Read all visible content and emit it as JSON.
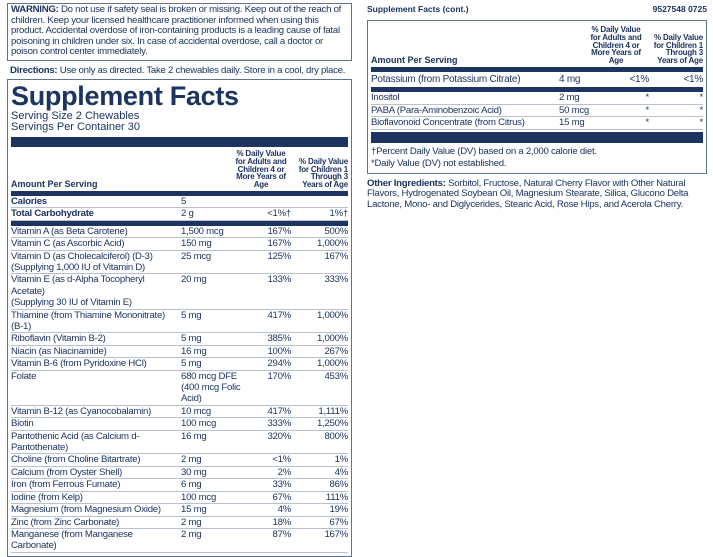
{
  "warning": {
    "label": "WARNING:",
    "text": " Do not use if safety seal is broken or missing. Keep out of the reach of children. Keep your licensed healthcare practitioner informed when using this product. Accidental overdose of iron-containing products is a leading cause of fatal poisoning in children under six. In case of accidental overdose, call a doctor or poison control center immediately."
  },
  "directions": {
    "label": "Directions:",
    "text": " Use only as directed. Take 2 chewables daily. Store in a cool, dry place."
  },
  "facts": {
    "title": "Supplement Facts",
    "serving_size": "Serving Size 2 Chewables",
    "servings": "Servings Per Container 30",
    "amount_header": "Amount Per Serving",
    "dv_adult_header": "% Daily Value for Adults and Children 4 or More Years of Age",
    "dv_child_header": "% Daily Value for Children 1 Through 3 Years of Age",
    "top_rows": [
      [
        "Calories",
        "5",
        "",
        ""
      ],
      [
        "Total Carbohydrate",
        "2 g",
        "<1%†",
        "1%†"
      ]
    ],
    "rows": [
      [
        "Vitamin A (as Beta Carotene)",
        "1,500 mcg",
        "167%",
        "500%"
      ],
      [
        "Vitamin C (as Ascorbic Acid)",
        "150 mg",
        "167%",
        "1,000%"
      ],
      [
        "Vitamin D (as Cholecalciferol) (D-3)\n (Supplying 1,000 IU of Vitamin D)",
        "25 mcg",
        "125%",
        "167%"
      ],
      [
        "Vitamin E (as d-Alpha Tocopheryl Acetate)\n (Supplying 30 IU of Vitamin E)",
        "20 mg",
        "133%",
        "333%"
      ],
      [
        "Thiamine (from Thiamine Mononitrate) (B-1)",
        "5 mg",
        "417%",
        "1,000%"
      ],
      [
        "Riboflavin (Vitamin B-2)",
        "5 mg",
        "385%",
        "1,000%"
      ],
      [
        "Niacin (as Niacinamide)",
        "16 mg",
        "100%",
        "267%"
      ],
      [
        "Vitamin B-6 (from Pyridoxine HCl)",
        "5 mg",
        "294%",
        "1,000%"
      ],
      [
        "Folate",
        "680 mcg DFE\n(400 mcg Folic Acid)",
        "170%",
        "453%"
      ],
      [
        "Vitamin B-12 (as Cyanocobalamin)",
        "10 mcg",
        "417%",
        "1,111%"
      ],
      [
        "Biotin",
        "100 mcg",
        "333%",
        "1,250%"
      ],
      [
        "Pantothenic Acid (as Calcium d-Pantothenate)",
        "16 mg",
        "320%",
        "800%"
      ],
      [
        "Choline (from Choline Bitartrate)",
        "2 mg",
        "<1%",
        "1%"
      ],
      [
        "Calcium (from Oyster Shell)",
        "30 mg",
        "2%",
        "4%"
      ],
      [
        "Iron (from Ferrous Fumate)",
        "6 mg",
        "33%",
        "86%"
      ],
      [
        "Iodine (from Kelp)",
        "100 mcg",
        "67%",
        "111%"
      ],
      [
        "Magnesium (from Magnesium Oxide)",
        "15 mg",
        "4%",
        "19%"
      ],
      [
        "Zinc (from Zinc Carbonate)",
        "2 mg",
        "18%",
        "67%"
      ],
      [
        "Manganese (from Manganese Carbonate)",
        "2 mg",
        "87%",
        "167%"
      ]
    ]
  },
  "cont": {
    "title": "Supplement Facts (cont.)",
    "code": "9527548  0725",
    "potassium": [
      "Potassium (from Potassium Citrate)",
      "4 mg",
      "<1%",
      "<1%"
    ],
    "rows": [
      [
        "Inositol",
        "2 mg",
        "*",
        "*"
      ],
      [
        "PABA (Para-Aminobenzoic Acid)",
        "50 mcg",
        "*",
        "*"
      ],
      [
        "Bioflavonoid Concentrate (from Citrus)",
        "15 mg",
        "*",
        "*"
      ]
    ],
    "footnote1": "†Percent Daily Value (DV) based on a 2,000 calorie diet.",
    "footnote2": "*Daily Value (DV) not established."
  },
  "other": {
    "label": "Other Ingredients:",
    "text": " Sorbitol, Fructose, Natural Cherry Flavor with Other Natural Flavors, Hydrogenated Soybean Oil, Magnesium Stearate, Silica, Glucono Delta Lactone, Mono- and Diglycerides, Stearic Acid, Rose Hips, and Acerola Cherry."
  }
}
